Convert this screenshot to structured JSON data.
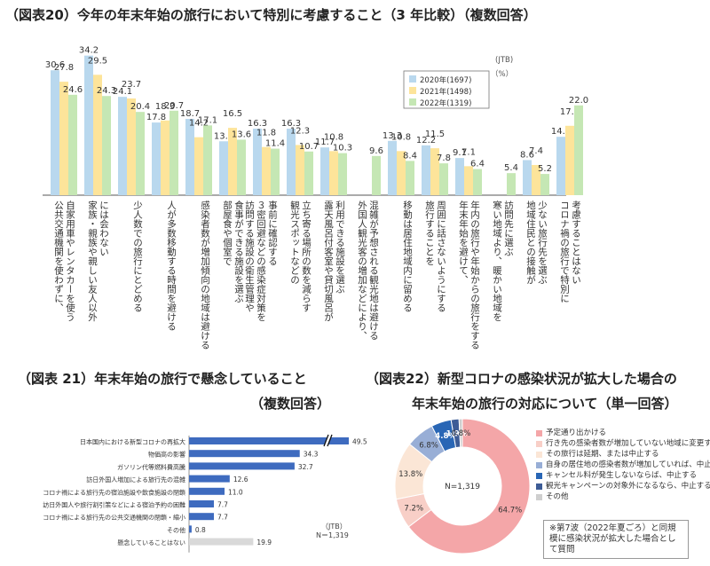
{
  "fig20": {
    "title": "（図表20）今年の年末年始の旅行において特別に考慮すること（3 年比較）（複数回答）",
    "source": "(JTB)",
    "unit": "（%）"
  },
  "fig21": {
    "title_line1": "（図表 21）年末年始の旅行で懸念していること",
    "title_line2": "（複数回答）",
    "source": "（JTB）",
    "sample": "N＝1,319"
  },
  "fig22": {
    "title_line1": "（図表22）新型コロナの感染状況が拡大した場合の",
    "title_line2": "年末年始の旅行の対応について（単一回答）",
    "center_label": "N=1,319",
    "note": "※第7波（2022年夏ごろ）と同規模に感染状況が拡大した場合として質問"
  },
  "chart_data": [
    {
      "type": "bar",
      "title": "（図表20）今年の年末年始の旅行において特別に考慮すること（3 年比較）（複数回答）",
      "ylabel": "（%）",
      "ylim": [
        0,
        36
      ],
      "legend_position": "top-right",
      "categories": [
        "自家用車やレンタカーを使う|公共交通機関を使わずに、",
        "には会わない|家族・親族や親しい友人以外",
        "少人数での旅行にとどめる",
        "人が多数移動する時間を避ける",
        "感染者数が増加傾向の地域は避ける",
        "食事ができる施設を選ぶ|部屋食や個室で",
        "事前に確認する|３密回避などの感染症対策を|訪問する施設の衛生管理や",
        "立ち寄る場所の数を減らす|観光スポットなどの",
        "利用できる施設を選ぶ|露天風呂付客室や貸切風呂が",
        "混雑が予想される観光地は避ける|外国人観光客の増加などにより、",
        "移動は居住地域内に留める",
        "周囲に話さないようにする|旅行することを",
        "年内の旅行や年始からの旅行をする|年末年始を避けて、",
        "訪問先に選ぶ|寒い地域より、暖かい地域を",
        "少ない旅行先を選ぶ|地域住民との接触が",
        "考慮することはない|コロナ禍の旅行で特別に"
      ],
      "series": [
        {
          "name": "2020年(1697)",
          "color": "#b9d8ee",
          "values": [
            30.6,
            34.2,
            24.1,
            17.8,
            18.7,
            13.2,
            16.3,
            16.3,
            11.7,
            null,
            13.3,
            12.2,
            9.1,
            null,
            8.6,
            14.3
          ]
        },
        {
          "name": "2021年(1498)",
          "color": "#fde49a",
          "values": [
            27.8,
            29.5,
            23.7,
            18.3,
            14.2,
            16.5,
            11.8,
            12.3,
            10.8,
            null,
            10.8,
            11.5,
            7.1,
            null,
            7.4,
            17.0
          ]
        },
        {
          "name": "2022年(1319)",
          "color": "#c5e7b4",
          "values": [
            24.6,
            24.3,
            20.4,
            20.7,
            17.1,
            13.6,
            11.4,
            10.7,
            10.3,
            9.6,
            8.4,
            7.8,
            6.4,
            5.4,
            5.2,
            22.0
          ]
        }
      ]
    },
    {
      "type": "bar",
      "orientation": "horizontal",
      "title": "（図表 21）年末年始の旅行で懸念していること",
      "categories": [
        "日本国内における新型コロナの再拡大",
        "物価高の影響",
        "ガソリン代等燃料費高騰",
        "訪日外国人増加による旅行先の混雑",
        "コロナ禍による旅行先の宿泊施設や飲食施設の閉鎖",
        "訪日外国人や旅行割引策などによる宿泊予約の困難",
        "コロナ禍による旅行先の公共交通機関の閉鎖・縮小",
        "その他",
        "懸念していることはない"
      ],
      "values": [
        49.5,
        34.3,
        32.7,
        12.6,
        11.0,
        7.7,
        7.7,
        0.8,
        19.9
      ],
      "colors": [
        "#3e6bbf",
        "#3e6bbf",
        "#3e6bbf",
        "#3e6bbf",
        "#3e6bbf",
        "#3e6bbf",
        "#3e6bbf",
        "#3e6bbf",
        "#d9d9d9"
      ],
      "axis_break": true
    },
    {
      "type": "pie",
      "style": "donut",
      "title": "（図表22）新型コロナの感染状況が拡大した場合の年末年始の旅行の対応について（単一回答）",
      "labels": [
        "予定通り出かける",
        "行き先の感染者数が増加していない地域に変更する",
        "その旅行は延期、または中止する",
        "自身の居住地の感染者数が増加していれば、中止する",
        "キャンセル料が発生しないならば、中止する",
        "観光キャンペーンの対象外になるなら、中止する",
        "その他"
      ],
      "values": [
        64.7,
        7.2,
        13.8,
        6.8,
        4.8,
        1.9,
        0.8
      ],
      "value_labels": [
        "64.7%",
        "7.2%",
        "13.8%",
        "6.8%",
        "4.8%",
        "1.9%",
        "0.8%"
      ],
      "colors": [
        "#f4a6a8",
        "#f8cfc7",
        "#fbe6d6",
        "#98aed6",
        "#2966b5",
        "#3d5c96",
        "#cfcfcf"
      ]
    }
  ]
}
